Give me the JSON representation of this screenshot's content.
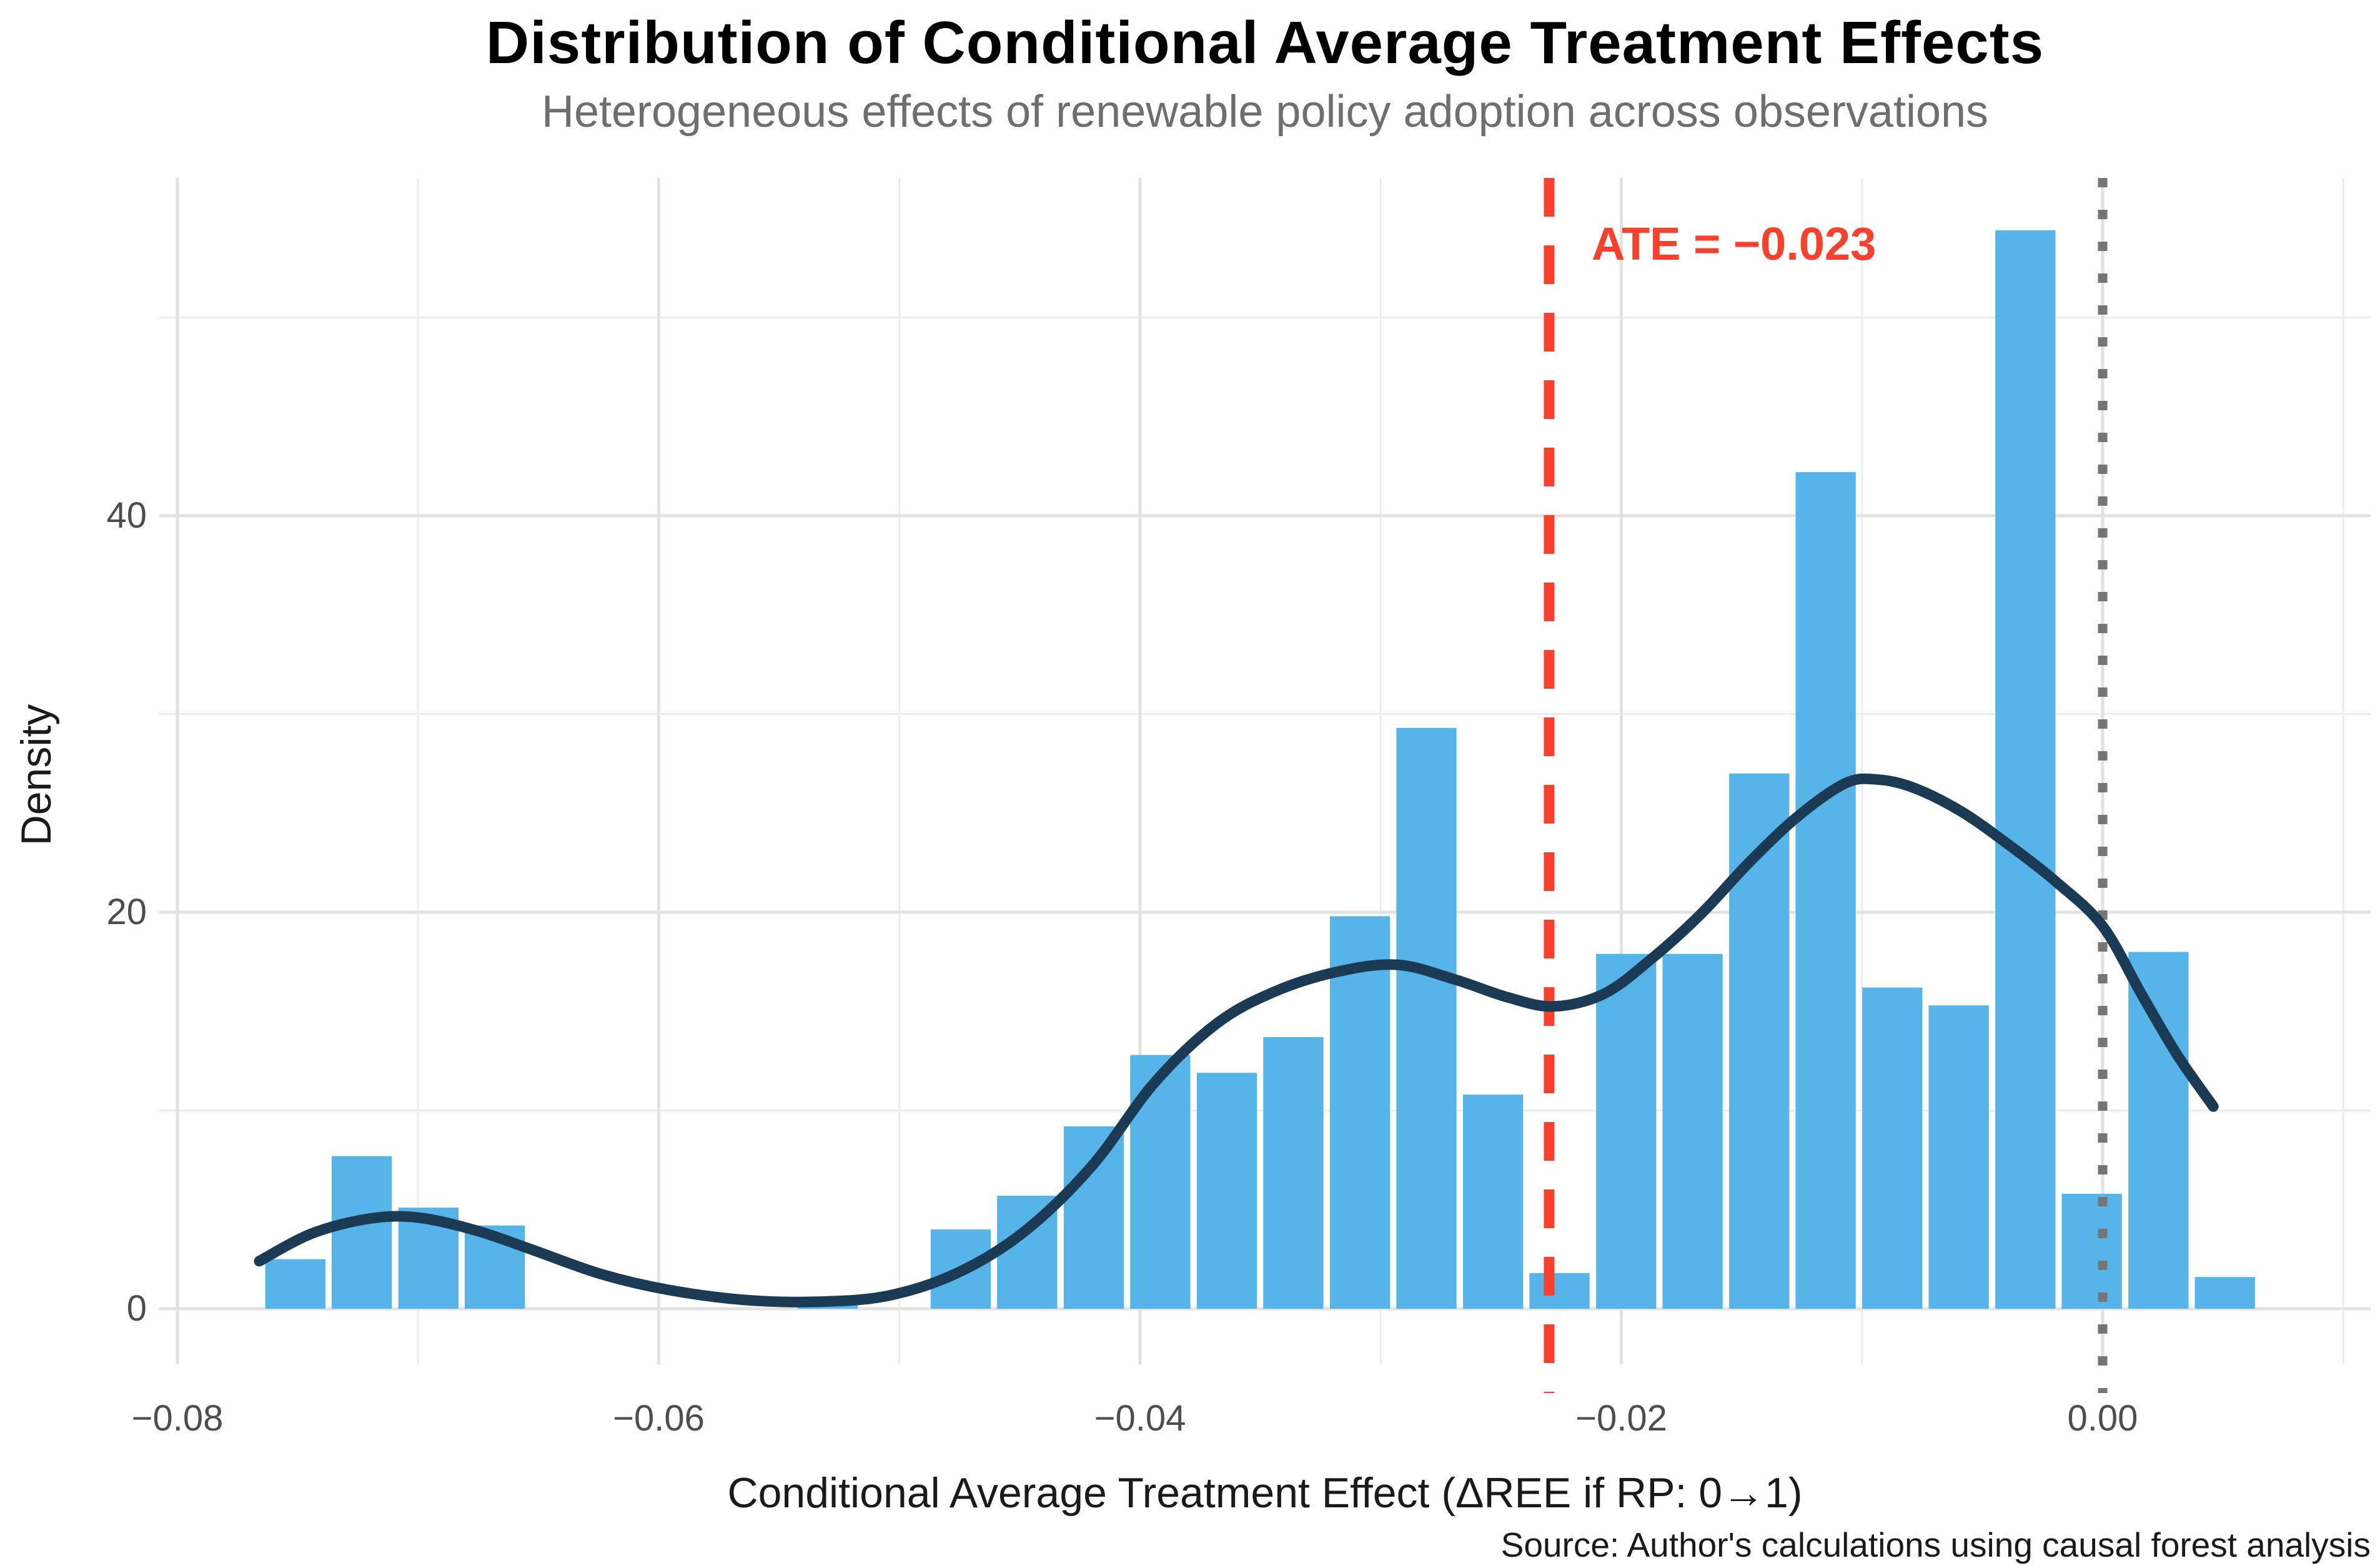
{
  "title": "Distribution of Conditional Average Treatment Effects",
  "subtitle": "Heterogeneous effects of renewable policy adoption across observations",
  "caption": "Source: Author's calculations using causal forest analysis",
  "annotation": {
    "ate_label": "ATE = −0.023",
    "ate_value": -0.023
  },
  "chart_data": {
    "type": "bar",
    "subtype": "histogram-with-density-overlay",
    "title": "Distribution of Conditional Average Treatment Effects",
    "xlabel": "Conditional Average Treatment Effect (ΔREE if RP: 0→1)",
    "ylabel": "Density",
    "xlim": [
      -0.0808,
      0.0111
    ],
    "ylim": [
      -2.8,
      57.0
    ],
    "grid": "on",
    "legend": "none",
    "x_ticks": [
      {
        "value": -0.08,
        "label": "−0.08"
      },
      {
        "value": -0.06,
        "label": "−0.06"
      },
      {
        "value": -0.04,
        "label": "−0.04"
      },
      {
        "value": -0.02,
        "label": "−0.02"
      },
      {
        "value": 0.0,
        "label": "0.00"
      }
    ],
    "x_minor_ticks": [
      -0.07,
      -0.05,
      -0.03,
      -0.01,
      0.01
    ],
    "y_ticks": [
      {
        "value": 0,
        "label": "0"
      },
      {
        "value": 20,
        "label": "20"
      },
      {
        "value": 40,
        "label": "40"
      }
    ],
    "y_minor_ticks": [
      10,
      30,
      50
    ],
    "bin_drawn_width": 0.0025,
    "bars": [
      {
        "x": -0.0751,
        "density": 2.5
      },
      {
        "x": -0.07234,
        "density": 7.7
      },
      {
        "x": -0.06957,
        "density": 5.1
      },
      {
        "x": -0.06681,
        "density": 4.2
      },
      {
        "x": -0.05298,
        "density": 0.6
      },
      {
        "x": -0.04745,
        "density": 4.0
      },
      {
        "x": -0.04469,
        "density": 5.7
      },
      {
        "x": -0.04192,
        "density": 9.2
      },
      {
        "x": -0.03916,
        "density": 12.8
      },
      {
        "x": -0.03639,
        "density": 11.9
      },
      {
        "x": -0.03363,
        "density": 13.7
      },
      {
        "x": -0.03086,
        "density": 19.8
      },
      {
        "x": -0.0281,
        "density": 29.3
      },
      {
        "x": -0.02533,
        "density": 10.8
      },
      {
        "x": -0.02257,
        "density": 1.8
      },
      {
        "x": -0.0198,
        "density": 17.9
      },
      {
        "x": -0.01704,
        "density": 17.9
      },
      {
        "x": -0.01427,
        "density": 27.0
      },
      {
        "x": -0.01151,
        "density": 42.2
      },
      {
        "x": -0.00874,
        "density": 16.2
      },
      {
        "x": -0.00598,
        "density": 15.3
      },
      {
        "x": -0.00321,
        "density": 54.4
      },
      {
        "x": -0.00045,
        "density": 5.8
      },
      {
        "x": 0.00232,
        "density": 18.0
      },
      {
        "x": 0.00508,
        "density": 1.6
      }
    ],
    "density_curve": [
      [
        -0.0766,
        2.4
      ],
      [
        -0.0744,
        3.8
      ],
      [
        -0.072,
        4.55
      ],
      [
        -0.07,
        4.6
      ],
      [
        -0.0676,
        3.95
      ],
      [
        -0.0652,
        2.95
      ],
      [
        -0.0624,
        1.75
      ],
      [
        -0.0596,
        0.95
      ],
      [
        -0.0565,
        0.45
      ],
      [
        -0.0535,
        0.35
      ],
      [
        -0.0505,
        0.65
      ],
      [
        -0.0476,
        1.8
      ],
      [
        -0.0448,
        3.9
      ],
      [
        -0.042,
        7.2
      ],
      [
        -0.0394,
        11.4
      ],
      [
        -0.0368,
        14.4
      ],
      [
        -0.0344,
        16.0
      ],
      [
        -0.0318,
        17.0
      ],
      [
        -0.0293,
        17.35
      ],
      [
        -0.0269,
        16.6
      ],
      [
        -0.0247,
        15.7
      ],
      [
        -0.0228,
        15.25
      ],
      [
        -0.0207,
        15.9
      ],
      [
        -0.0187,
        17.7
      ],
      [
        -0.0167,
        19.9
      ],
      [
        -0.0147,
        22.5
      ],
      [
        -0.0127,
        24.8
      ],
      [
        -0.0107,
        26.5
      ],
      [
        -0.0094,
        26.7
      ],
      [
        -0.0079,
        26.3
      ],
      [
        -0.0059,
        25.1
      ],
      [
        -0.0039,
        23.4
      ],
      [
        -0.0019,
        21.5
      ],
      [
        0.0,
        19.3
      ],
      [
        0.0016,
        15.9
      ],
      [
        0.0031,
        12.8
      ],
      [
        0.0046,
        10.2
      ]
    ],
    "vlines": [
      {
        "x": -0.023,
        "style": "dashed",
        "color": "#f8402c",
        "name": "ate-line"
      },
      {
        "x": 0.0,
        "style": "dotted",
        "color": "#757575",
        "name": "zero-line"
      }
    ],
    "colors": {
      "bar_fill": "#56b4e9",
      "density_curve": "#1b3a54",
      "ate_line": "#f8402c",
      "ate_text": "#f8402c",
      "zero_line": "#757575",
      "grid_major": "#e2e2e2",
      "grid_minor": "#ededed",
      "tick_text": "#4d4d4d",
      "subtitle_text": "#6e6e6e",
      "background": "#ffffff"
    }
  }
}
